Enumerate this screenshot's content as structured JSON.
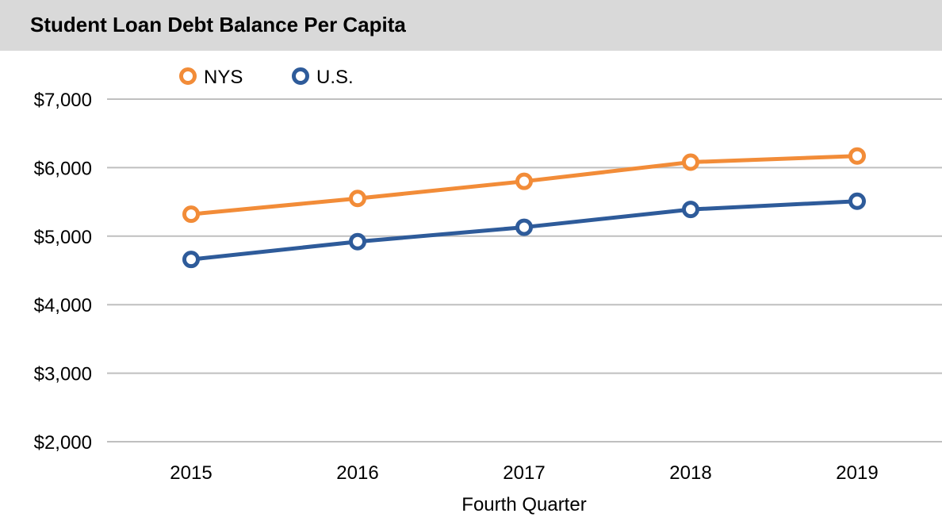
{
  "chart_data": {
    "type": "line",
    "title": "Student Loan Debt Balance Per Capita",
    "xlabel": "Fourth Quarter",
    "ylabel": "",
    "categories": [
      "2015",
      "2016",
      "2017",
      "2018",
      "2019"
    ],
    "ylim": [
      2000,
      7000
    ],
    "yticks": [
      7000,
      6000,
      5000,
      4000,
      3000,
      2000
    ],
    "ytick_labels": [
      "$7,000",
      "$6,000",
      "$5,000",
      "$4,000",
      "$3,000",
      "$2,000"
    ],
    "grid": true,
    "legend_position": "top-left",
    "series": [
      {
        "name": "NYS",
        "color": "#f28c38",
        "values": [
          5320,
          5550,
          5800,
          6080,
          6170
        ]
      },
      {
        "name": "U.S.",
        "color": "#2e5b9a",
        "values": [
          4660,
          4920,
          5130,
          5390,
          5510
        ]
      }
    ]
  }
}
